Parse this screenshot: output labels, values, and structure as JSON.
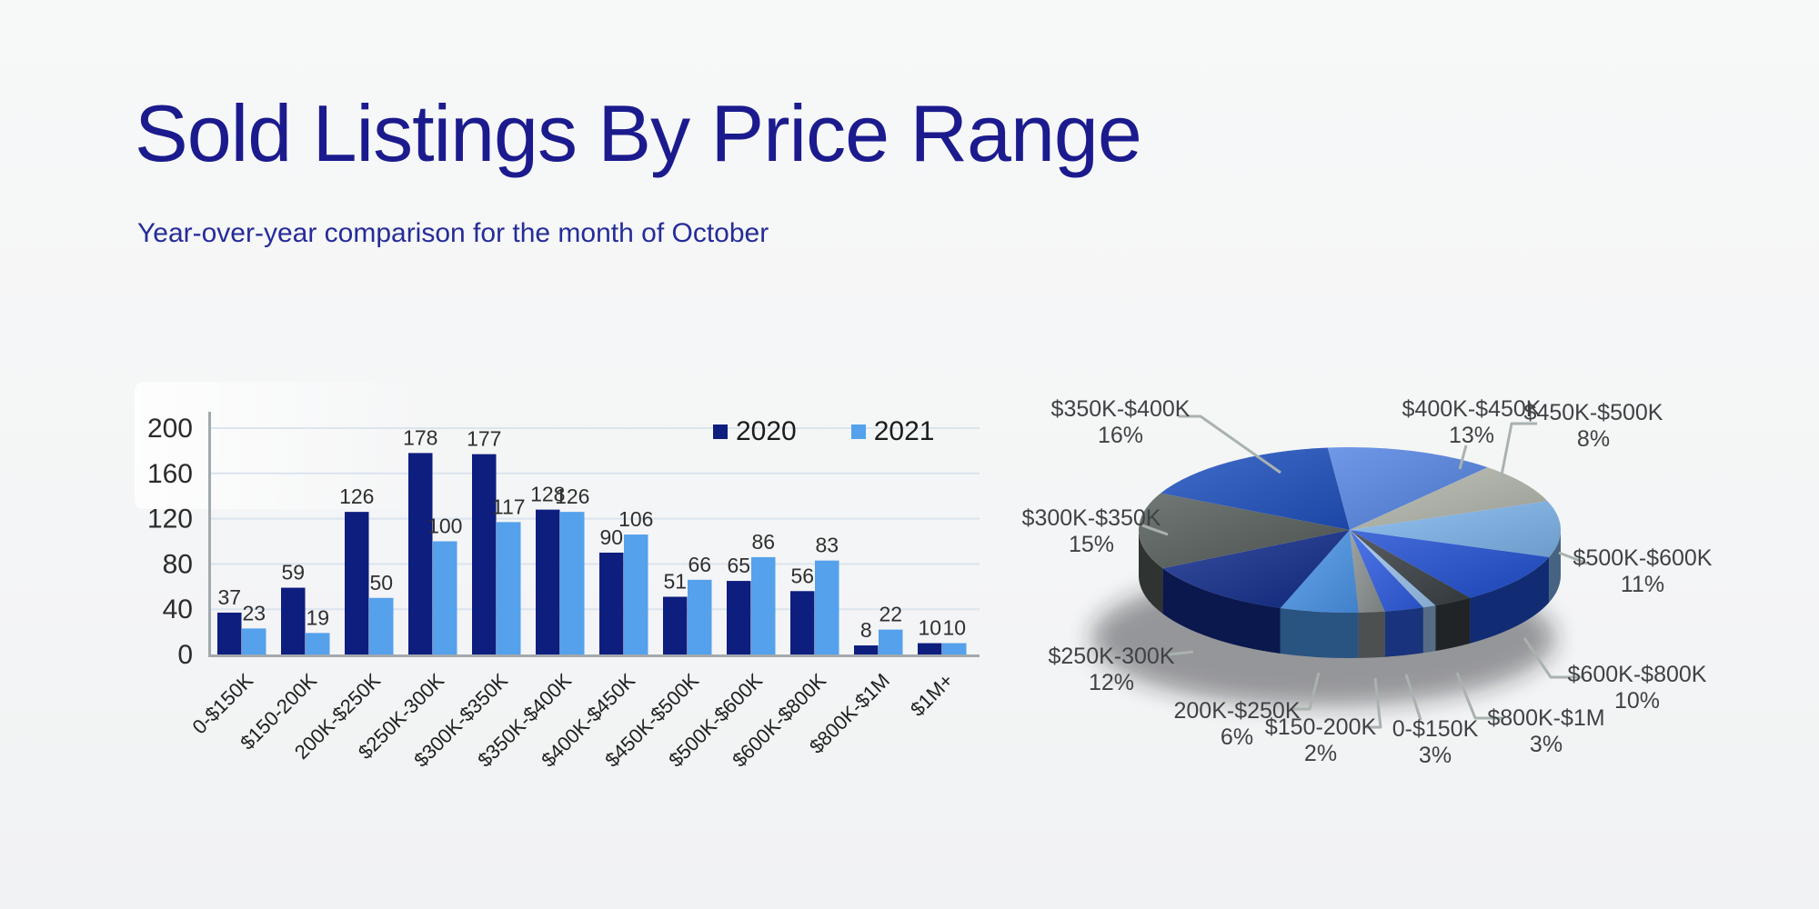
{
  "header": {
    "title": "Sold Listings By Price Range",
    "subtitle": "Year-over-year comparison for the month of October",
    "title_color": "#1b1b8e"
  },
  "chart_data": [
    {
      "type": "bar",
      "title": "",
      "xlabel": "",
      "ylabel": "",
      "categories": [
        "0-$150K",
        "$150-200K",
        "200K-$250K",
        "$250K-300K",
        "$300K-$350K",
        "$350K-$400K",
        "$400K-$450K",
        "$450K-$500K",
        "$500K-$600K",
        "$600K-$800K",
        "$800K-$1M",
        "$1M+"
      ],
      "series": [
        {
          "name": "2020",
          "color": "#0e1e7e",
          "values": [
            37,
            59,
            126,
            178,
            177,
            128,
            90,
            51,
            65,
            56,
            8,
            10
          ]
        },
        {
          "name": "2021",
          "color": "#55a1ec",
          "values": [
            23,
            19,
            50,
            100,
            117,
            126,
            106,
            66,
            86,
            83,
            22,
            10
          ]
        }
      ],
      "ylim": [
        0,
        200
      ],
      "yticks": [
        0,
        40,
        80,
        120,
        160,
        200
      ],
      "grid": true,
      "legend_position": "top-right",
      "value_labels": true
    },
    {
      "type": "pie",
      "title": "",
      "start_angle_deg": -96,
      "slices": [
        {
          "label": "$400K-$450K",
          "pct": 13,
          "color": "#5585e4",
          "label_visible": true
        },
        {
          "label": "$450K-$500K",
          "pct": 8,
          "color": "#b2b6ac",
          "label_visible": true
        },
        {
          "label": "$500K-$600K",
          "pct": 11,
          "color": "#7fb5ec",
          "label_visible": true
        },
        {
          "label": "$600K-$800K",
          "pct": 10,
          "color": "#2150d2",
          "label_visible": true
        },
        {
          "label": "$800K-$1M",
          "pct": 3,
          "color": "#3a4146",
          "label_visible": true
        },
        {
          "label": "$1M+",
          "pct": 1,
          "color": "#9cc4f0",
          "label_visible": false
        },
        {
          "label": "0-$150K",
          "pct": 3,
          "color": "#2e5de2",
          "label_visible": true
        },
        {
          "label": "$150-200K",
          "pct": 2,
          "color": "#8b9291",
          "label_visible": true
        },
        {
          "label": "200K-$250K",
          "pct": 6,
          "color": "#4b96ea",
          "label_visible": true
        },
        {
          "label": "$250K-300K",
          "pct": 12,
          "color": "#122c8c",
          "label_visible": true
        },
        {
          "label": "$300K-$350K",
          "pct": 15,
          "color": "#565e5b",
          "label_visible": true
        },
        {
          "label": "$350K-$400K",
          "pct": 16,
          "color": "#1f51c0",
          "label_visible": true
        }
      ]
    }
  ]
}
